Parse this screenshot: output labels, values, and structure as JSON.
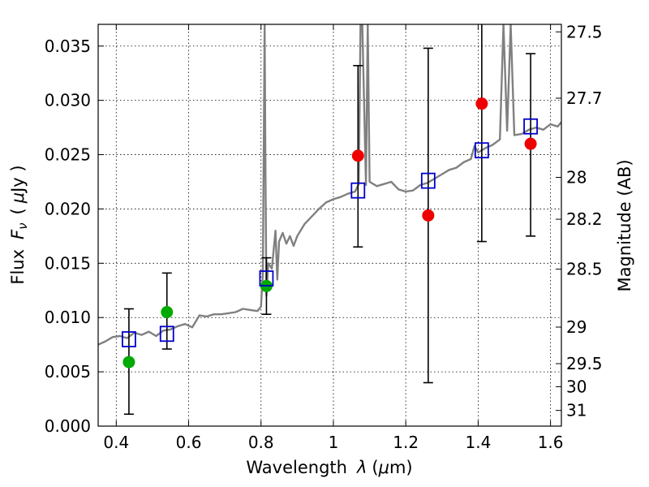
{
  "chart_data": {
    "type": "scatter",
    "title": "",
    "xlabel_main": "Wavelength",
    "xlabel_symbol": "λ",
    "xlabel_unit_open": "(",
    "xlabel_unit_mu": "μ",
    "xlabel_unit_rest": "m)",
    "ylabel_main": "Flux",
    "ylabel_symbol": "F",
    "ylabel_symbol_sub": "ν",
    "ylabel_unit_open": "(",
    "ylabel_unit_mu": "μ",
    "ylabel_unit_rest": "Jy )",
    "y2label": "Magnitude (AB)",
    "xlim": [
      0.35,
      1.63
    ],
    "ylim": [
      0.0,
      0.037
    ],
    "grid": true,
    "x_ticks": [
      0.4,
      0.6,
      0.8,
      1.0,
      1.2,
      1.4,
      1.6
    ],
    "x_tick_labels": [
      "0.4",
      "0.6",
      "0.8",
      "1",
      "1.2",
      "1.4",
      "1.6"
    ],
    "y_ticks": [
      0.0,
      0.005,
      0.01,
      0.015,
      0.02,
      0.025,
      0.03,
      0.035
    ],
    "y_tick_labels": [
      "0.000",
      "0.005",
      "0.010",
      "0.015",
      "0.020",
      "0.025",
      "0.030",
      "0.035"
    ],
    "y2_ticks": [
      27.5,
      27.7,
      28,
      28.2,
      28.5,
      29,
      29.5,
      30,
      31
    ],
    "y2_tick_labels": [
      "27.5",
      "27.7",
      "28",
      "28.2",
      "28.5",
      "29",
      "29.5",
      "30",
      "31"
    ],
    "spectrum": {
      "color": "#808080",
      "x": [
        0.35,
        0.37,
        0.39,
        0.41,
        0.43,
        0.45,
        0.47,
        0.49,
        0.51,
        0.53,
        0.55,
        0.57,
        0.59,
        0.61,
        0.63,
        0.65,
        0.67,
        0.69,
        0.71,
        0.73,
        0.75,
        0.77,
        0.79,
        0.8,
        0.805,
        0.81,
        0.812,
        0.815,
        0.82,
        0.83,
        0.84,
        0.845,
        0.85,
        0.86,
        0.87,
        0.88,
        0.89,
        0.9,
        0.92,
        0.94,
        0.96,
        0.98,
        1.0,
        1.02,
        1.04,
        1.06,
        1.07,
        1.075,
        1.08,
        1.09,
        1.095,
        1.1,
        1.12,
        1.14,
        1.16,
        1.18,
        1.2,
        1.22,
        1.24,
        1.26,
        1.28,
        1.3,
        1.32,
        1.34,
        1.36,
        1.38,
        1.39,
        1.4,
        1.42,
        1.44,
        1.46,
        1.47,
        1.48,
        1.49,
        1.5,
        1.52,
        1.54,
        1.56,
        1.58,
        1.6,
        1.62,
        1.63
      ],
      "y": [
        0.0075,
        0.0078,
        0.0082,
        0.0083,
        0.0081,
        0.0086,
        0.0084,
        0.0087,
        0.0083,
        0.0088,
        0.0089,
        0.0092,
        0.0094,
        0.0091,
        0.0102,
        0.0101,
        0.0103,
        0.0103,
        0.0104,
        0.0105,
        0.0108,
        0.0107,
        0.0106,
        0.011,
        0.014,
        0.037,
        0.025,
        0.012,
        0.015,
        0.0145,
        0.018,
        0.0135,
        0.017,
        0.0178,
        0.0168,
        0.0175,
        0.0166,
        0.0175,
        0.0186,
        0.0193,
        0.02,
        0.0206,
        0.0209,
        0.0211,
        0.0214,
        0.0216,
        0.0223,
        0.037,
        0.037,
        0.0222,
        0.037,
        0.0225,
        0.0221,
        0.0223,
        0.0225,
        0.0218,
        0.0216,
        0.0217,
        0.0222,
        0.0224,
        0.0228,
        0.0232,
        0.0236,
        0.0238,
        0.0243,
        0.0246,
        0.0258,
        0.0252,
        0.0256,
        0.0259,
        0.0264,
        0.037,
        0.0272,
        0.037,
        0.0268,
        0.0269,
        0.0273,
        0.0275,
        0.0273,
        0.0278,
        0.0276,
        0.028
      ]
    },
    "points_green": {
      "color": "#00aa00",
      "x": [
        0.435,
        0.54,
        0.815
      ],
      "y": [
        0.0059,
        0.0105,
        0.0129
      ]
    },
    "points_red": {
      "color": "#ee0000",
      "x": [
        1.068,
        1.262,
        1.41,
        1.545
      ],
      "y": [
        0.0249,
        0.0194,
        0.0297,
        0.026
      ]
    },
    "model_squares": {
      "color": "#0000cc",
      "x": [
        0.435,
        0.54,
        0.815,
        1.068,
        1.262,
        1.41,
        1.545
      ],
      "y": [
        0.008,
        0.0085,
        0.0136,
        0.0217,
        0.0226,
        0.0254,
        0.0276
      ]
    },
    "error_bars": {
      "color": "#000000",
      "x": [
        0.435,
        0.54,
        0.815,
        1.068,
        1.262,
        1.41,
        1.545
      ],
      "low": [
        0.0011,
        0.0071,
        0.0103,
        0.0165,
        0.004,
        0.017,
        0.0175
      ],
      "high": [
        0.0108,
        0.0141,
        0.0155,
        0.0332,
        0.0348,
        0.037,
        0.0343
      ]
    }
  }
}
